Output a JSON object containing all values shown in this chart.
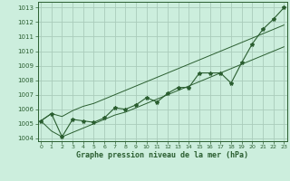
{
  "xlabel": "Graphe pression niveau de la mer (hPa)",
  "bg_color": "#cceedd",
  "grid_color": "#aaccbb",
  "line_color": "#2a5e30",
  "x_values": [
    0,
    1,
    2,
    3,
    4,
    5,
    6,
    7,
    8,
    9,
    10,
    11,
    12,
    13,
    14,
    15,
    16,
    17,
    18,
    19,
    20,
    21,
    22,
    23
  ],
  "y_main": [
    1005.2,
    1005.7,
    1004.1,
    1005.3,
    1005.2,
    1005.1,
    1005.4,
    1006.1,
    1006.0,
    1006.3,
    1006.8,
    1006.5,
    1007.1,
    1007.5,
    1007.5,
    1008.5,
    1008.5,
    1008.5,
    1007.8,
    1009.2,
    1010.5,
    1011.5,
    1012.2,
    1013.0
  ],
  "y_upper": [
    1005.2,
    1005.7,
    1005.5,
    1005.9,
    1006.2,
    1006.4,
    1006.7,
    1007.0,
    1007.3,
    1007.6,
    1007.9,
    1008.2,
    1008.5,
    1008.8,
    1009.1,
    1009.4,
    1009.7,
    1010.0,
    1010.3,
    1010.6,
    1010.9,
    1011.2,
    1011.5,
    1011.8
  ],
  "y_lower": [
    1005.2,
    1004.5,
    1004.1,
    1004.4,
    1004.7,
    1005.0,
    1005.3,
    1005.6,
    1005.8,
    1006.1,
    1006.4,
    1006.7,
    1007.0,
    1007.3,
    1007.6,
    1007.9,
    1008.2,
    1008.5,
    1008.8,
    1009.1,
    1009.4,
    1009.7,
    1010.0,
    1010.3
  ],
  "ylim": [
    1003.8,
    1013.4
  ],
  "ytick_min": 1004,
  "ytick_max": 1013,
  "xticks": [
    0,
    1,
    2,
    3,
    4,
    5,
    6,
    7,
    8,
    9,
    10,
    11,
    12,
    13,
    14,
    15,
    16,
    17,
    18,
    19,
    20,
    21,
    22,
    23
  ],
  "figsize": [
    3.2,
    2.0
  ],
  "dpi": 100
}
